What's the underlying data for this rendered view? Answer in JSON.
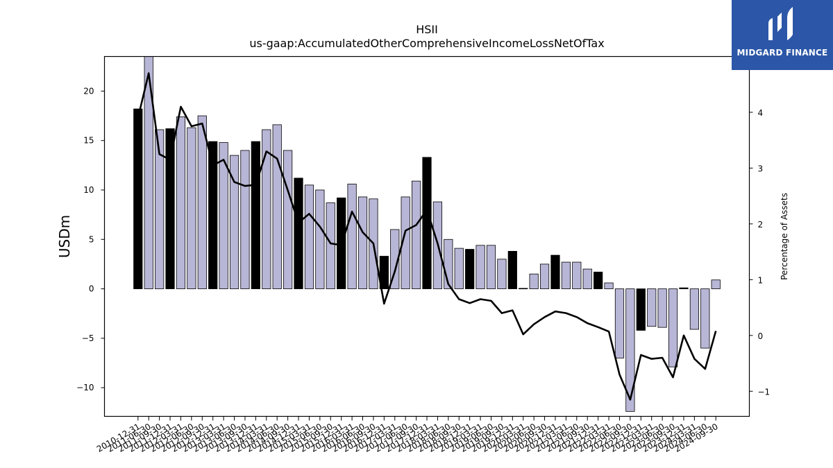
{
  "chart_data": {
    "type": "bar",
    "title": "HSII",
    "subtitle": "us-gaap:AccumulatedOtherComprehensiveIncomeLossNetOfTax",
    "ylabel": "USDm",
    "y2label": "Percentage of Assets",
    "ylim": [
      -12.9,
      23.5
    ],
    "y2lim": [
      -1.45,
      5.0
    ],
    "yticks": [
      -10,
      -5,
      0,
      5,
      10,
      15,
      20
    ],
    "y2ticks": [
      -1,
      0,
      1,
      2,
      3,
      4
    ],
    "grid": false,
    "colors": {
      "q4_bar": "#000000",
      "other_bar": "#b8b6d6",
      "line": "#000000"
    },
    "categories": [
      "2010-12-31",
      "2011-06-30",
      "2011-09-30",
      "2011-12-31",
      "2012-03-31",
      "2012-06-30",
      "2012-09-30",
      "2012-12-31",
      "2013-03-31",
      "2013-06-30",
      "2013-09-30",
      "2013-12-31",
      "2014-03-31",
      "2014-06-30",
      "2014-09-30",
      "2014-12-31",
      "2015-03-31",
      "2015-06-30",
      "2015-09-30",
      "2015-12-31",
      "2016-03-31",
      "2016-06-30",
      "2016-09-30",
      "2016-12-31",
      "2017-03-31",
      "2017-06-30",
      "2017-09-30",
      "2017-12-31",
      "2018-03-31",
      "2018-06-30",
      "2018-09-30",
      "2018-12-31",
      "2019-03-31",
      "2019-06-30",
      "2019-09-30",
      "2019-12-31",
      "2020-03-31",
      "2020-06-30",
      "2020-09-30",
      "2020-12-31",
      "2021-03-31",
      "2021-06-30",
      "2021-09-30",
      "2021-12-31",
      "2022-03-31",
      "2022-06-30",
      "2022-09-30",
      "2022-12-31",
      "2023-03-31",
      "2023-06-30",
      "2023-09-30",
      "2023-12-31",
      "2024-03-31",
      "2024-06-30",
      "2024-09-30"
    ],
    "series": [
      {
        "type": "bar",
        "values": [
          18.2,
          23.6,
          16.1,
          16.2,
          17.4,
          16.3,
          17.5,
          14.9,
          14.8,
          13.5,
          14.0,
          14.9,
          16.1,
          16.6,
          14.0,
          11.2,
          10.5,
          10.0,
          8.7,
          9.2,
          10.6,
          9.3,
          9.1,
          3.3,
          6.0,
          9.3,
          10.9,
          13.3,
          8.8,
          5.0,
          4.1,
          4.0,
          4.4,
          4.4,
          3.0,
          3.8,
          0.05,
          1.5,
          2.5,
          3.4,
          2.7,
          2.7,
          2.0,
          1.7,
          0.6,
          -7.0,
          -12.4,
          -4.2,
          -3.8,
          -3.9,
          -7.9,
          0.1,
          -4.1,
          -6.0,
          0.9
        ]
      },
      {
        "type": "line",
        "axis": "right",
        "values": [
          3.9,
          4.7,
          3.25,
          3.15,
          4.1,
          3.75,
          3.8,
          3.05,
          3.15,
          2.75,
          2.68,
          2.7,
          3.3,
          3.17,
          2.6,
          2.02,
          2.18,
          1.95,
          1.65,
          1.62,
          2.22,
          1.85,
          1.65,
          0.57,
          1.15,
          1.88,
          1.98,
          2.25,
          1.65,
          0.92,
          0.65,
          0.58,
          0.65,
          0.62,
          0.4,
          0.45,
          0.02,
          0.2,
          0.33,
          0.43,
          0.4,
          0.33,
          0.22,
          0.15,
          0.07,
          -0.7,
          -1.15,
          -0.35,
          -0.42,
          -0.4,
          -0.75,
          0.0,
          -0.42,
          -0.6,
          0.08
        ]
      }
    ]
  },
  "logo": {
    "text": "MIDGARD FINANCE"
  }
}
